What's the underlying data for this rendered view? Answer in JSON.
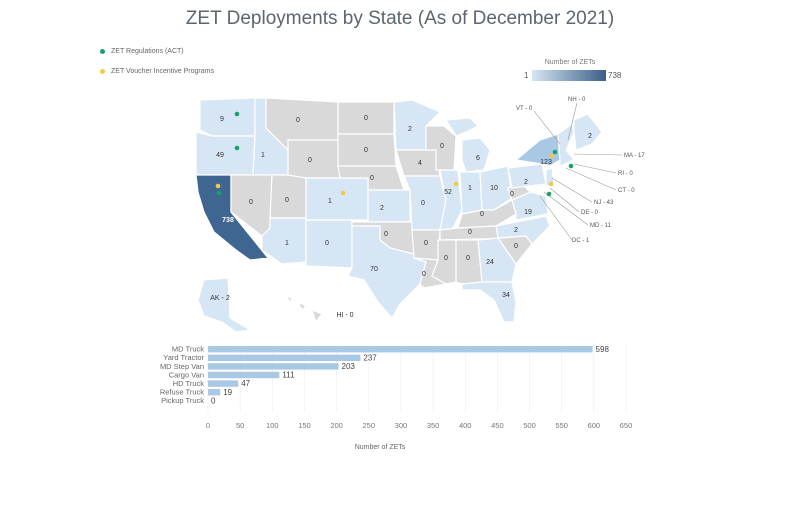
{
  "title": "ZET Deployments by State (As of December 2021)",
  "legend": {
    "act_label": "ZET Regulations (ACT)",
    "act_color": "#1aa06b",
    "voucher_label": "ZET Voucher Incentive Programs",
    "voucher_color": "#f2c94c"
  },
  "color_scale": {
    "title": "Number of ZETs",
    "min_label": "1",
    "max_label": "738",
    "low_color": "#d6e6f4",
    "high_color": "#3b5f87",
    "zero_color": "#d9d9d9"
  },
  "state_labels": {
    "wa": "9",
    "or": "49",
    "ca": "738",
    "id": "1",
    "mt": "0",
    "wy": "0",
    "nv": "0",
    "ut": "0",
    "az": "1",
    "co": "1",
    "nm": "0",
    "nd": "0",
    "sd": "0",
    "ne": "0",
    "ks": "2",
    "ok": "0",
    "tx": "70",
    "mn": "2",
    "ia": "4",
    "mo": "0",
    "ar": "0",
    "la": "0",
    "wi": "0",
    "il": "52",
    "mi": "6",
    "in": "1",
    "oh": "10",
    "ky": "0",
    "tn": "0",
    "ms": "0",
    "al": "0",
    "ga": "24",
    "fl": "34",
    "sc": "0",
    "nc": "2",
    "va": "19",
    "wv": "0",
    "pa": "2",
    "ny": "123",
    "me": "2",
    "ak": "AK - 2",
    "hi": "HI - 0"
  },
  "callouts": {
    "vt": "VT - 0",
    "nh": "NH - 0",
    "ma": "MA - 17",
    "ri": "RI - 0",
    "ct": "CT - 0",
    "nj": "NJ - 43",
    "de": "DE - 0",
    "md": "MD - 11",
    "dc": "DC - 1"
  },
  "chart_data": {
    "type": "bar",
    "orientation": "horizontal",
    "categories": [
      "MD Truck",
      "Yard Tractor",
      "MD Step Van",
      "Cargo Van",
      "HD Truck",
      "Refuse Truck",
      "Pickup Truck"
    ],
    "values": [
      598,
      237,
      203,
      111,
      47,
      19,
      0
    ],
    "xlabel": "Number of ZETs",
    "xlim": [
      0,
      650
    ],
    "xticks": [
      0,
      50,
      100,
      150,
      200,
      250,
      300,
      350,
      400,
      450,
      500,
      550,
      600,
      650
    ],
    "bar_color": "#a8c8e4",
    "grid": true
  }
}
